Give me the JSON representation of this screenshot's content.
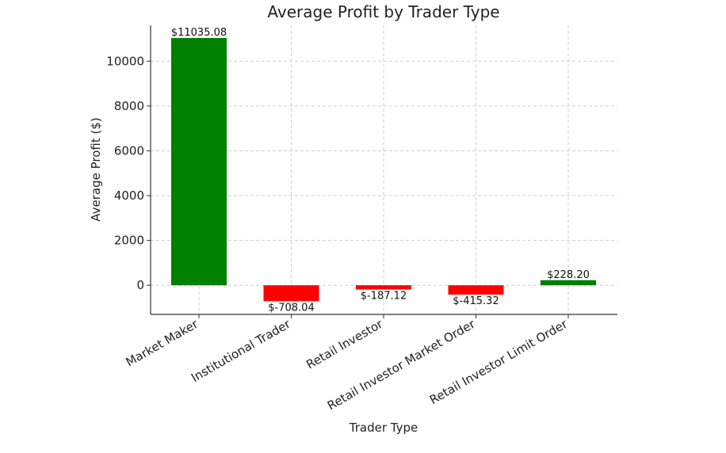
{
  "chart_data": {
    "type": "bar",
    "title": "Average Profit by Trader Type",
    "xlabel": "Trader Type",
    "ylabel": "Average Profit ($)",
    "categories": [
      "Market Maker",
      "Institutional Trader",
      "Retail Investor",
      "Retail Investor Market Order",
      "Retail Investor Limit Order"
    ],
    "values": [
      11035.08,
      -708.04,
      -187.12,
      -415.32,
      228.2
    ],
    "data_labels": [
      "$11035.08",
      "$-708.04",
      "$-187.12",
      "$-415.32",
      "$228.20"
    ],
    "ylim": [
      -1300,
      11600
    ],
    "yticks": [
      0,
      2000,
      4000,
      6000,
      8000,
      10000
    ],
    "ytick_labels": [
      "0",
      "2000",
      "4000",
      "6000",
      "8000",
      "10000"
    ],
    "grid": true,
    "legend": "none",
    "colors": {
      "positive": "#008000",
      "negative": "#ff0000"
    }
  }
}
